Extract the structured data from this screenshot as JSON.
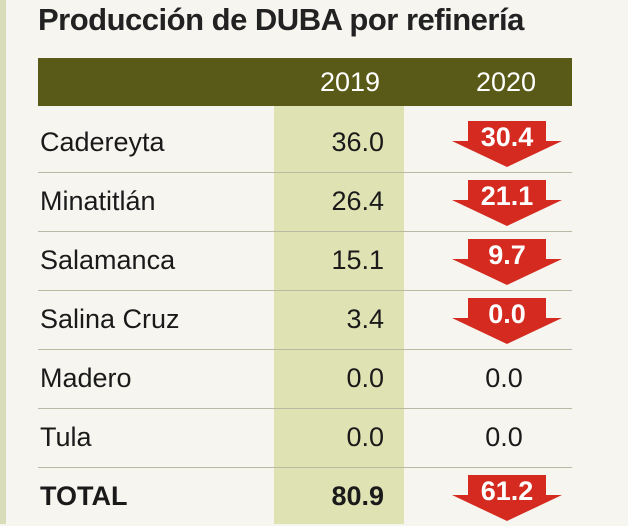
{
  "title": "Producción de DUBA por refinería",
  "header": {
    "col_2019": "2019",
    "col_2020": "2020"
  },
  "colors": {
    "header_bg": "#5a5a18",
    "highlight_col": "#dfe3b3",
    "down_arrow": "#d42a20"
  },
  "chart_data": {
    "type": "table",
    "title": "Producción de DUBA por refinería",
    "columns": [
      "",
      "2019",
      "2020"
    ],
    "rows": [
      {
        "label": "Cadereyta",
        "v2019": "36.0",
        "v2020": "30.4",
        "decrease": true
      },
      {
        "label": "Minatitlán",
        "v2019": "26.4",
        "v2020": "21.1",
        "decrease": true
      },
      {
        "label": "Salamanca",
        "v2019": "15.1",
        "v2020": "9.7",
        "decrease": true
      },
      {
        "label": "Salina Cruz",
        "v2019": "3.4",
        "v2020": "0.0",
        "decrease": true
      },
      {
        "label": "Madero",
        "v2019": "0.0",
        "v2020": "0.0",
        "decrease": false
      },
      {
        "label": "Tula",
        "v2019": "0.0",
        "v2020": "0.0",
        "decrease": false
      }
    ],
    "total": {
      "label": "TOTAL",
      "v2019": "80.9",
      "v2020": "61.2",
      "decrease": true
    }
  }
}
